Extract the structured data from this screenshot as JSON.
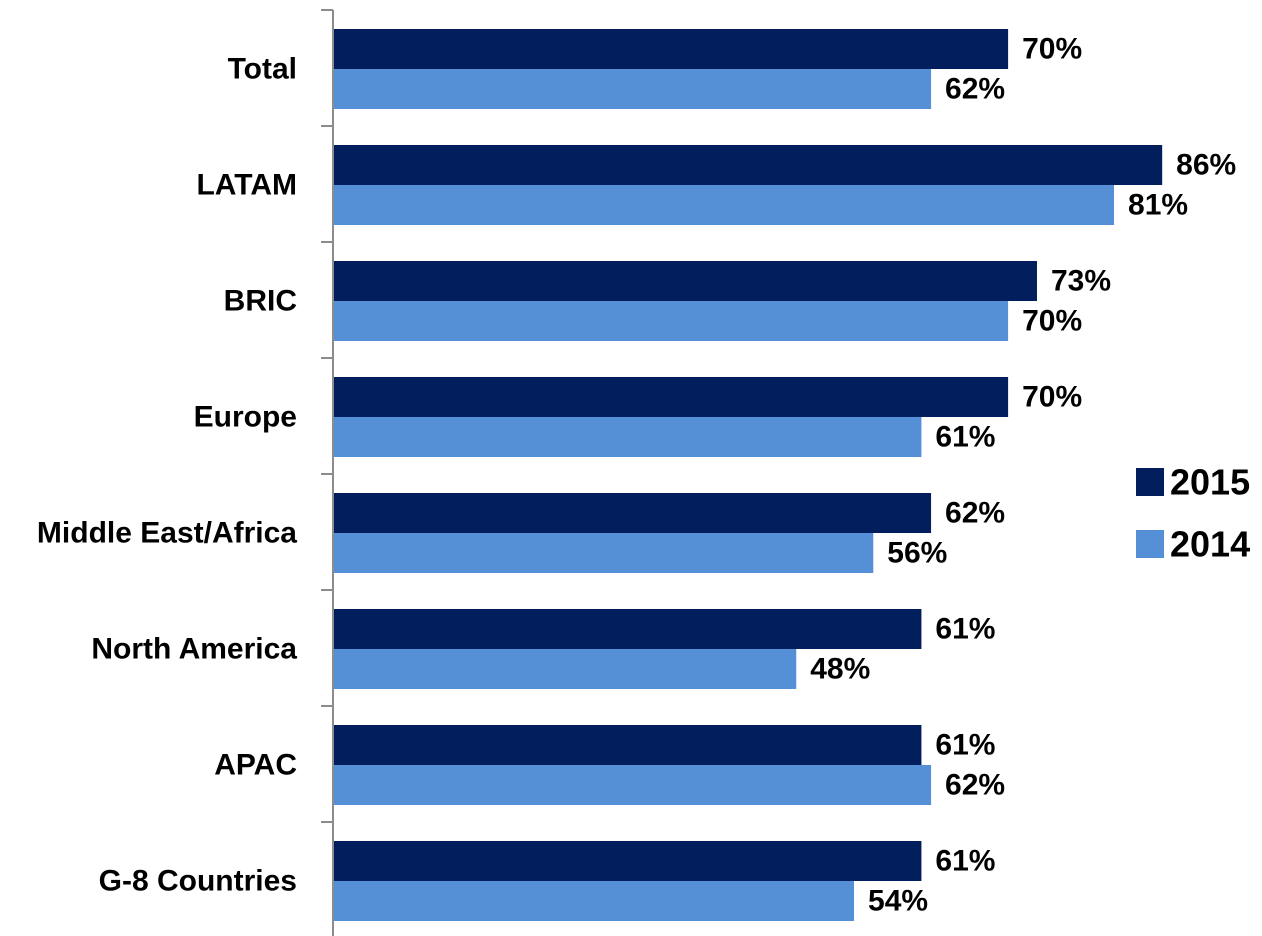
{
  "chart_data": {
    "type": "bar",
    "orientation": "horizontal",
    "categories": [
      "Total",
      "LATAM",
      "BRIC",
      "Europe",
      "Middle East/Africa",
      "North America",
      "APAC",
      "G-8 Countries"
    ],
    "series": [
      {
        "name": "2015",
        "color": "#021E5C",
        "values": [
          70,
          86,
          73,
          70,
          62,
          61,
          61,
          61
        ]
      },
      {
        "name": "2014",
        "color": "#5590D6",
        "values": [
          62,
          81,
          70,
          61,
          56,
          48,
          62,
          54
        ]
      }
    ],
    "value_format": "percent",
    "xlim": [
      0,
      100
    ],
    "grid": false,
    "legend": "right"
  }
}
